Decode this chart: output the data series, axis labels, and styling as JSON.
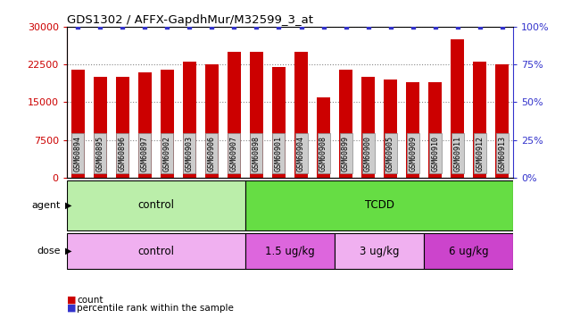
{
  "title": "GDS1302 / AFFX-GapdhMur/M32599_3_at",
  "samples": [
    "GSM60894",
    "GSM60895",
    "GSM60896",
    "GSM60897",
    "GSM60902",
    "GSM60903",
    "GSM60906",
    "GSM60907",
    "GSM60898",
    "GSM60901",
    "GSM60904",
    "GSM60908",
    "GSM60899",
    "GSM60900",
    "GSM60905",
    "GSM60909",
    "GSM60910",
    "GSM60911",
    "GSM60912",
    "GSM60913"
  ],
  "counts": [
    21500,
    20000,
    20000,
    21000,
    21500,
    23000,
    22500,
    25000,
    25000,
    22000,
    25000,
    16000,
    21500,
    20000,
    19500,
    19000,
    19000,
    27500,
    23000,
    22500
  ],
  "percentile": [
    100,
    100,
    100,
    100,
    100,
    100,
    100,
    100,
    100,
    100,
    100,
    100,
    100,
    100,
    100,
    100,
    100,
    100,
    100,
    100
  ],
  "bar_color": "#cc0000",
  "percentile_color": "#3333cc",
  "ylim_left": [
    0,
    30000
  ],
  "ylim_right": [
    0,
    100
  ],
  "yticks_left": [
    0,
    7500,
    15000,
    22500,
    30000
  ],
  "yticks_right": [
    0,
    25,
    50,
    75,
    100
  ],
  "agent_labels": [
    {
      "label": "control",
      "start": 0,
      "end": 8,
      "color": "#bbeeaa"
    },
    {
      "label": "TCDD",
      "start": 8,
      "end": 20,
      "color": "#66dd44"
    }
  ],
  "dose_labels": [
    {
      "label": "control",
      "start": 0,
      "end": 8,
      "color": "#f0b0f0"
    },
    {
      "label": "1.5 ug/kg",
      "start": 8,
      "end": 12,
      "color": "#dd66dd"
    },
    {
      "label": "3 ug/kg",
      "start": 12,
      "end": 16,
      "color": "#f0b0f0"
    },
    {
      "label": "6 ug/kg",
      "start": 16,
      "end": 20,
      "color": "#cc44cc"
    }
  ],
  "legend_count_color": "#cc0000",
  "legend_percentile_color": "#3333cc",
  "background_color": "#ffffff",
  "grid_color": "#888888",
  "tick_label_bg": "#cccccc",
  "tick_label_edge": "#888888"
}
